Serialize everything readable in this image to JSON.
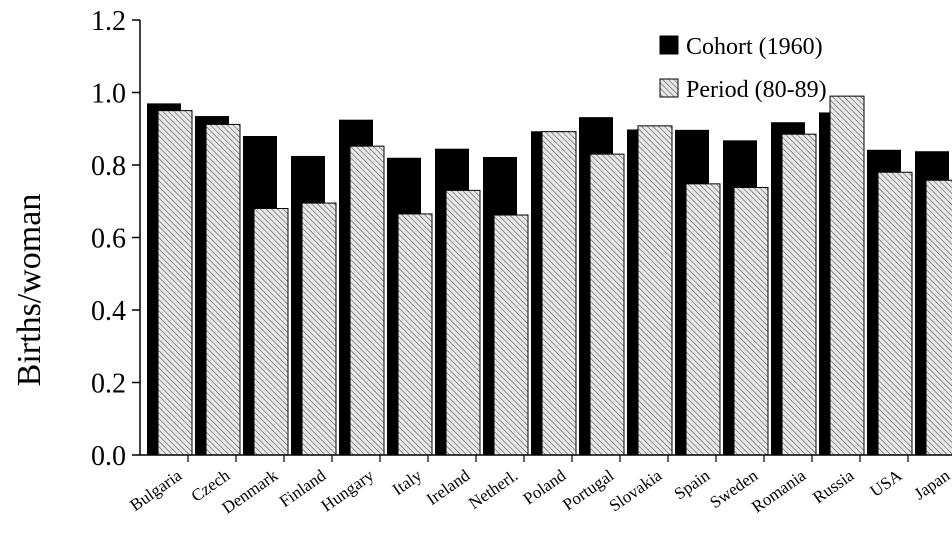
{
  "chart_data": {
    "type": "bar",
    "title": "",
    "xlabel": "",
    "ylabel": "Births/woman",
    "ylim": [
      0.0,
      1.2
    ],
    "yticks": [
      "0.0",
      "0.2",
      "0.4",
      "0.6",
      "0.8",
      "1.0",
      "1.2"
    ],
    "grid": false,
    "legend_position": "top-right",
    "categories": [
      "Bulgaria",
      "Czech",
      "Denmark",
      "Finland",
      "Hungary",
      "Italy",
      "Ireland",
      "Netherl.",
      "Poland",
      "Portugal",
      "Slovakia",
      "Spain",
      "Sweden",
      "Romania",
      "Russia",
      "USA",
      "Japan"
    ],
    "series": [
      {
        "name": "Cohort (1960)",
        "fill": "solid",
        "color": "#000000",
        "values": [
          0.97,
          0.935,
          0.88,
          0.825,
          0.925,
          0.82,
          0.845,
          0.822,
          0.893,
          0.932,
          0.898,
          0.897,
          0.868,
          0.918,
          0.945,
          0.842,
          0.838
        ]
      },
      {
        "name": "Period (80-89)",
        "fill": "hatched",
        "color": "#cccccc",
        "values": [
          0.95,
          0.912,
          0.68,
          0.695,
          0.852,
          0.665,
          0.73,
          0.662,
          0.892,
          0.83,
          0.908,
          0.748,
          0.738,
          0.885,
          0.99,
          0.78,
          0.758
        ]
      }
    ]
  }
}
